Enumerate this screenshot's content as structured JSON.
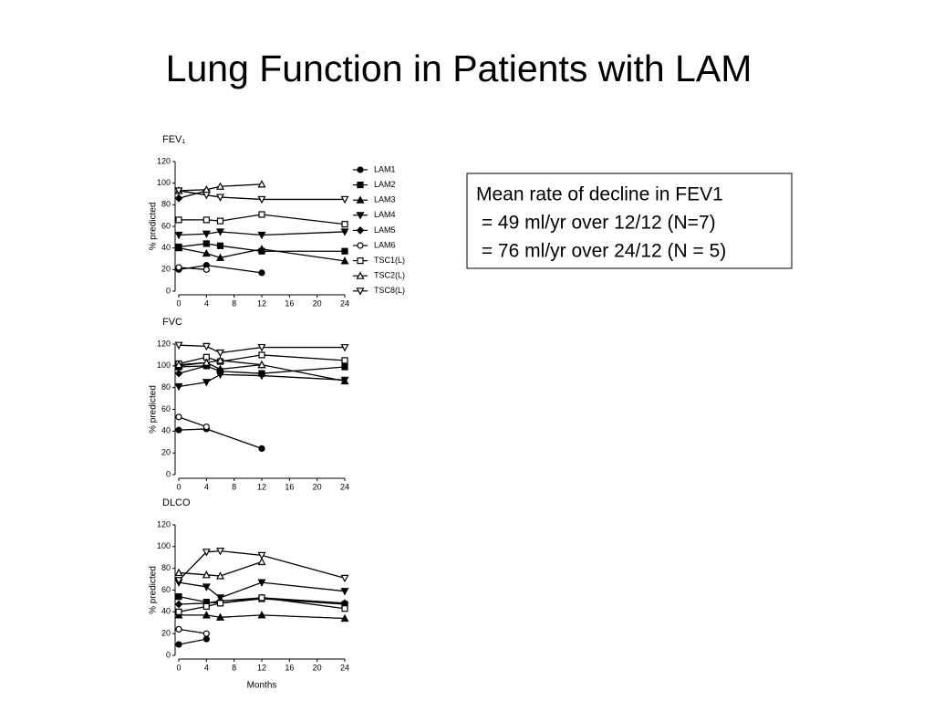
{
  "title": "Lung Function in Patients with LAM",
  "textbox": {
    "lines": [
      "Mean rate of decline in FEV1",
      " = 49 ml/yr over 12/12 (N=7)",
      " = 76 ml/yr over 24/12 (N = 5)"
    ]
  },
  "chart_data": [
    {
      "type": "line",
      "title": "FEV₁",
      "y_label": "% predicted",
      "xlim": [
        0,
        24
      ],
      "xticks": [
        0,
        4,
        8,
        12,
        16,
        20,
        24
      ],
      "ylim": [
        0,
        120
      ],
      "yticks": [
        0,
        20,
        40,
        60,
        80,
        100,
        120
      ],
      "series": [
        {
          "name": "LAM1",
          "color": "#000000",
          "marker": "circle",
          "filled": true,
          "x": [
            0,
            4,
            12
          ],
          "values": [
            20,
            24,
            17
          ]
        },
        {
          "name": "LAM2",
          "color": "#000000",
          "marker": "square",
          "filled": true,
          "x": [
            0,
            4,
            6,
            12,
            24
          ],
          "values": [
            41,
            44,
            42,
            37,
            37
          ]
        },
        {
          "name": "LAM3",
          "color": "#000000",
          "marker": "triangle-up",
          "filled": true,
          "x": [
            0,
            4,
            6,
            12,
            24
          ],
          "values": [
            40,
            35,
            31,
            39,
            28
          ]
        },
        {
          "name": "LAM4",
          "color": "#000000",
          "marker": "triangle-down",
          "filled": true,
          "x": [
            0,
            4,
            6,
            12,
            24
          ],
          "values": [
            52,
            53,
            55,
            52,
            55
          ]
        },
        {
          "name": "LAM5",
          "color": "#000000",
          "marker": "diamond",
          "filled": true,
          "x": [
            0,
            4
          ],
          "values": [
            86,
            93
          ]
        },
        {
          "name": "LAM6",
          "color": "#000000",
          "marker": "circle",
          "filled": false,
          "x": [
            0,
            4
          ],
          "values": [
            22,
            20
          ]
        },
        {
          "name": "TSC1(L)",
          "color": "#000000",
          "marker": "square",
          "filled": false,
          "x": [
            0,
            4,
            6,
            12,
            24
          ],
          "values": [
            66,
            66,
            65,
            71,
            62
          ]
        },
        {
          "name": "TSC2(L)",
          "color": "#000000",
          "marker": "triangle-up",
          "filled": false,
          "x": [
            0,
            4,
            6,
            12
          ],
          "values": [
            93,
            94,
            97,
            99
          ]
        },
        {
          "name": "TSC8(L)",
          "color": "#000000",
          "marker": "triangle-down",
          "filled": false,
          "x": [
            0,
            4,
            6,
            12,
            24
          ],
          "values": [
            93,
            89,
            87,
            85,
            85
          ]
        }
      ]
    },
    {
      "type": "line",
      "title": "FVC",
      "y_label": "% predicted",
      "xlim": [
        0,
        24
      ],
      "xticks": [
        0,
        4,
        8,
        12,
        16,
        20,
        24
      ],
      "ylim": [
        0,
        120
      ],
      "yticks": [
        0,
        20,
        40,
        60,
        80,
        100,
        120
      ],
      "series": [
        {
          "color": "#000000",
          "marker": "circle",
          "filled": true,
          "x": [
            0,
            4,
            12
          ],
          "values": [
            41,
            42,
            24
          ]
        },
        {
          "color": "#000000",
          "marker": "square",
          "filled": true,
          "x": [
            0,
            4,
            6,
            12,
            24
          ],
          "values": [
            99,
            100,
            95,
            93,
            99
          ]
        },
        {
          "color": "#000000",
          "marker": "triangle-up",
          "filled": true,
          "x": [
            0,
            4,
            6,
            12,
            24
          ],
          "values": [
            100,
            103,
            97,
            101,
            86
          ]
        },
        {
          "color": "#000000",
          "marker": "triangle-down",
          "filled": true,
          "x": [
            0,
            4,
            6,
            12,
            24
          ],
          "values": [
            81,
            85,
            92,
            91,
            87
          ]
        },
        {
          "color": "#000000",
          "marker": "diamond",
          "filled": true,
          "x": [
            0,
            4
          ],
          "values": [
            93,
            100
          ]
        },
        {
          "color": "#000000",
          "marker": "circle",
          "filled": false,
          "x": [
            0,
            4
          ],
          "values": [
            53,
            44
          ]
        },
        {
          "color": "#000000",
          "marker": "square",
          "filled": false,
          "x": [
            0,
            4,
            6,
            12,
            24
          ],
          "values": [
            102,
            108,
            104,
            110,
            105
          ]
        },
        {
          "color": "#000000",
          "marker": "triangle-up",
          "filled": false,
          "x": [
            0,
            4,
            6,
            12
          ],
          "values": [
            101,
            103,
            105,
            101
          ]
        },
        {
          "color": "#000000",
          "marker": "triangle-down",
          "filled": false,
          "x": [
            0,
            4,
            6,
            12,
            24
          ],
          "values": [
            119,
            118,
            112,
            117,
            117
          ]
        }
      ]
    },
    {
      "type": "line",
      "title": "DLCO",
      "y_label": "% predicted",
      "x_label": "Months",
      "xlim": [
        0,
        24
      ],
      "xticks": [
        0,
        4,
        8,
        12,
        16,
        20,
        24
      ],
      "ylim": [
        0,
        120
      ],
      "yticks": [
        0,
        20,
        40,
        60,
        80,
        100,
        120
      ],
      "series": [
        {
          "color": "#000000",
          "marker": "circle",
          "filled": true,
          "x": [
            0,
            4
          ],
          "values": [
            10,
            15
          ]
        },
        {
          "color": "#000000",
          "marker": "square",
          "filled": true,
          "x": [
            0,
            4,
            6,
            12,
            24
          ],
          "values": [
            54,
            49,
            48,
            52,
            47
          ]
        },
        {
          "color": "#000000",
          "marker": "triangle-up",
          "filled": true,
          "x": [
            0,
            4,
            6,
            12,
            24
          ],
          "values": [
            37,
            37,
            35,
            37,
            34
          ]
        },
        {
          "color": "#000000",
          "marker": "triangle-down",
          "filled": true,
          "x": [
            0,
            4,
            6,
            12,
            24
          ],
          "values": [
            67,
            63,
            53,
            67,
            59
          ]
        },
        {
          "color": "#000000",
          "marker": "diamond",
          "filled": true,
          "x": [
            0,
            4,
            6,
            12,
            24
          ],
          "values": [
            47,
            48,
            50,
            53,
            48
          ]
        },
        {
          "color": "#000000",
          "marker": "circle",
          "filled": false,
          "x": [
            0,
            4
          ],
          "values": [
            24,
            20
          ]
        },
        {
          "color": "#000000",
          "marker": "square",
          "filled": false,
          "x": [
            0,
            4,
            6,
            12,
            24
          ],
          "values": [
            40,
            45,
            48,
            53,
            43
          ]
        },
        {
          "color": "#000000",
          "marker": "triangle-up",
          "filled": false,
          "x": [
            0,
            4,
            6,
            12
          ],
          "values": [
            76,
            74,
            73,
            86
          ]
        },
        {
          "color": "#000000",
          "marker": "triangle-down",
          "filled": false,
          "x": [
            0,
            4,
            6,
            12,
            24
          ],
          "values": [
            69,
            95,
            96,
            92,
            71
          ]
        }
      ]
    }
  ]
}
